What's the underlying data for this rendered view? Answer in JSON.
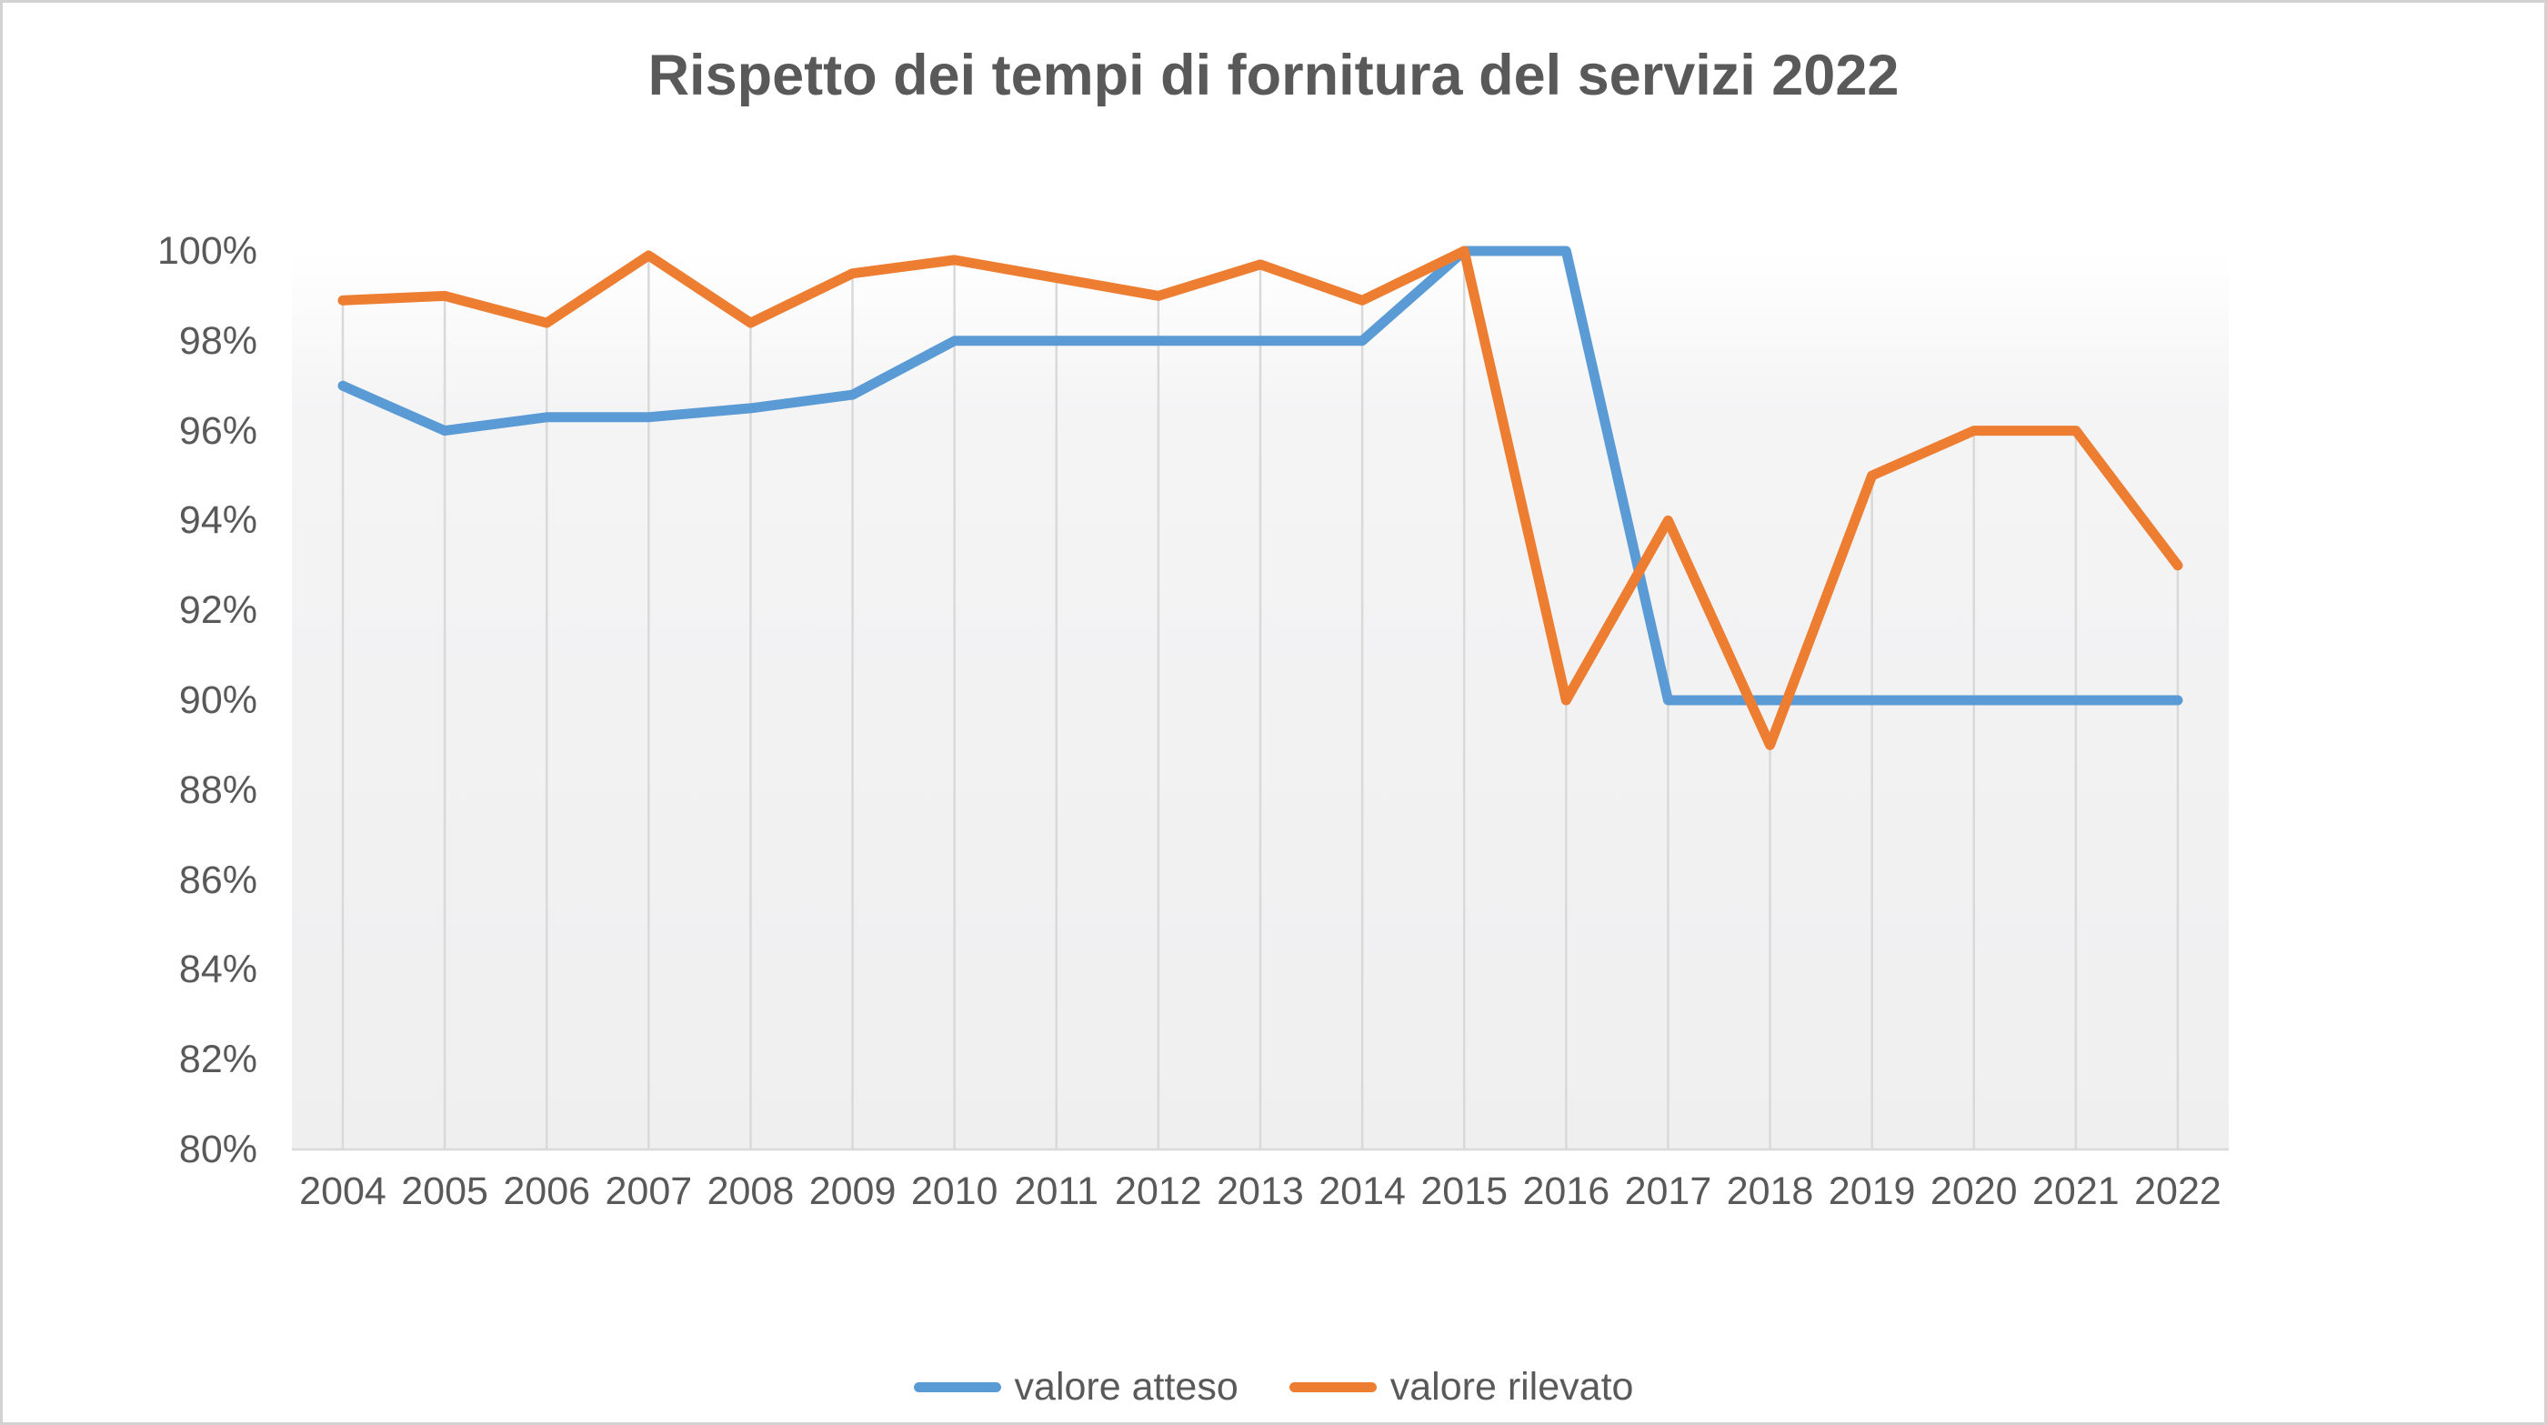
{
  "title": "Rispetto dei tempi di fornitura del servizi 2022",
  "chart_data": {
    "type": "line",
    "title": "Rispetto dei tempi di fornitura del servizi 2022",
    "categories": [
      "2004",
      "2005",
      "2006",
      "2007",
      "2008",
      "2009",
      "2010",
      "2011",
      "2012",
      "2013",
      "2014",
      "2015",
      "2016",
      "2017",
      "2018",
      "2019",
      "2020",
      "2021",
      "2022"
    ],
    "series": [
      {
        "name": "valore atteso",
        "color": "#5B9BD5",
        "values": [
          97,
          96,
          96.3,
          96.3,
          96.5,
          96.8,
          98,
          98,
          98,
          98,
          98,
          100,
          100,
          90,
          90,
          90,
          90,
          90,
          90
        ]
      },
      {
        "name": "valore rilevato",
        "color": "#ED7D31",
        "values": [
          98.9,
          99,
          98.4,
          99.9,
          98.4,
          99.5,
          99.8,
          99.4,
          99,
          99.7,
          98.9,
          100,
          90,
          94,
          89,
          95,
          96,
          96,
          93
        ],
        "drop_lines": true
      }
    ],
    "xlabel": "",
    "ylabel": "",
    "ylim": [
      80,
      100
    ],
    "y_tick_step": 2,
    "y_tick_labels": [
      "100%",
      "98%",
      "96%",
      "94%",
      "92%",
      "90%",
      "88%",
      "86%",
      "84%",
      "82%",
      "80%"
    ],
    "grid": "vertical drop lines from valore rilevato points to category axis; no horizontal gridlines",
    "legend_position": "bottom",
    "axis_color": "#D9D9D9",
    "label_color": "#595959"
  }
}
